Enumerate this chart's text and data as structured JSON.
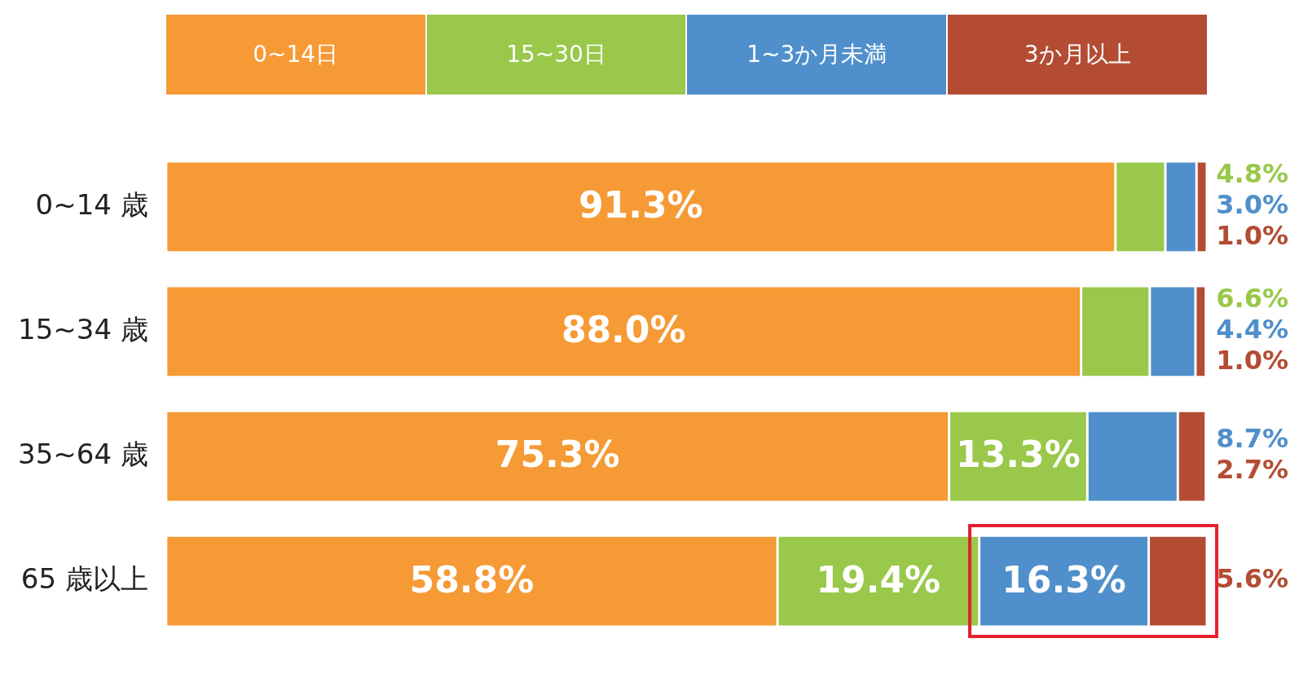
{
  "chart_data": {
    "type": "bar",
    "orientation": "horizontal",
    "stacked": true,
    "legend": "top",
    "categories": [
      "0~14 歳",
      "15~34 歳",
      "35~64 歳",
      "65 歳以上"
    ],
    "series": [
      {
        "name": "0~14日",
        "color": "#f59a35",
        "values": [
          91.3,
          88.0,
          75.3,
          58.8
        ],
        "value_labels": [
          "91.3%",
          "88.0%",
          "75.3%",
          "58.8%"
        ]
      },
      {
        "name": "15~30日",
        "color": "#99c84a",
        "values": [
          4.8,
          6.6,
          13.3,
          19.4
        ],
        "value_labels": [
          "4.8%",
          "6.6%",
          "13.3%",
          "19.4%"
        ]
      },
      {
        "name": "1~3か月未満",
        "color": "#4f8fcb",
        "values": [
          3.0,
          4.4,
          8.7,
          16.3
        ],
        "value_labels": [
          "3.0%",
          "4.4%",
          "8.7%",
          "16.3%"
        ]
      },
      {
        "name": "3か月以上",
        "color": "#b34c33",
        "values": [
          1.0,
          1.0,
          2.7,
          5.6
        ],
        "value_labels": [
          "1.0%",
          "1.0%",
          "2.7%",
          "5.6%"
        ]
      }
    ]
  }
}
